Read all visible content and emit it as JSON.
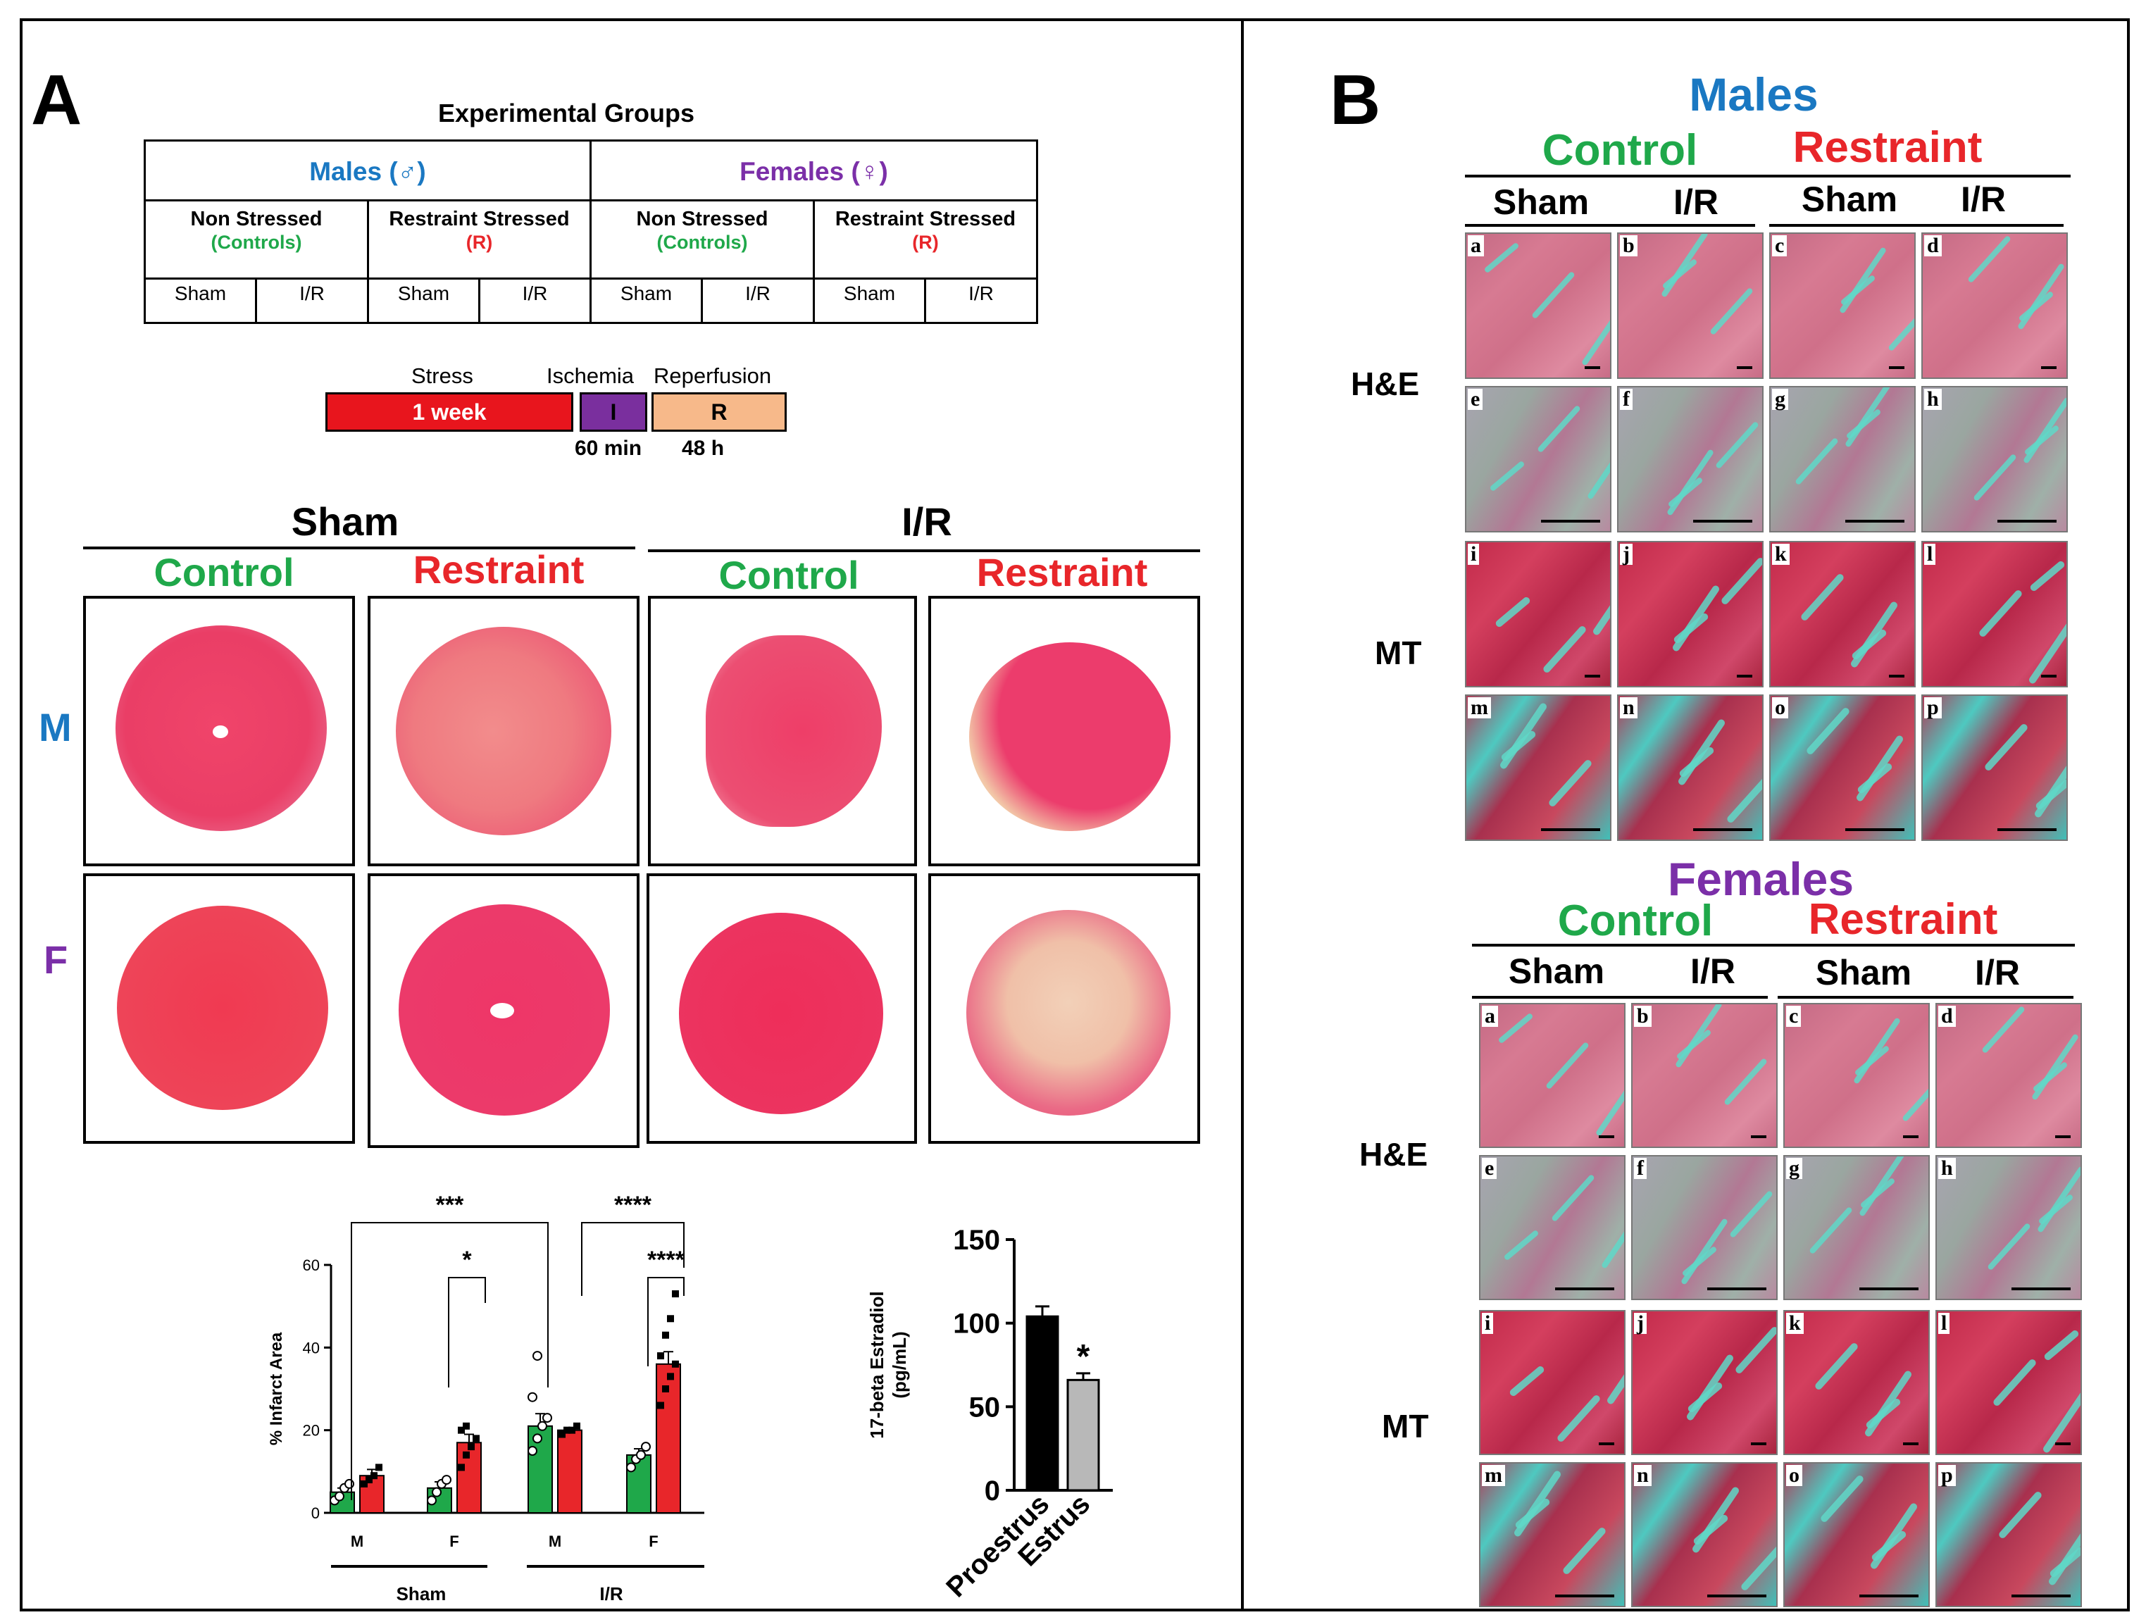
{
  "panelA": {
    "label": "A",
    "table": {
      "title": "Experimental Groups",
      "males": "Males (♂)",
      "females": "Females (♀)",
      "non_stressed": "Non Stressed",
      "controls": "(Controls)",
      "restraint_stressed": "Restraint Stressed",
      "r": "(R)",
      "sham": "Sham",
      "ir": "I/R"
    },
    "timeline": {
      "stress": "Stress",
      "ischemia": "Ischemia",
      "reperfusion": "Reperfusion",
      "week": "1 week",
      "i": "I",
      "r": "R",
      "min": "60 min",
      "h": "48 h"
    },
    "hearts": {
      "sham": "Sham",
      "ir": "I/R",
      "control": "Control",
      "restraint": "Restraint",
      "m": "M",
      "f": "F"
    }
  },
  "colors": {
    "male_blue": "#1a78c2",
    "female_purple": "#7b2fa8",
    "control_green": "#1fa84a",
    "restraint_red": "#e8262a",
    "stress_bar": "#e8151d",
    "ischemia_bar": "#7a2f9e",
    "reperfusion_bar": "#f7b98a"
  },
  "chart_data": [
    {
      "type": "bar",
      "ylabel": "% Infarct Area",
      "ylim": [
        0,
        60
      ],
      "yticks": [
        "0",
        "20",
        "40",
        "60"
      ],
      "categories": [
        "M",
        "F",
        "M",
        "F"
      ],
      "groups": [
        "Sham",
        "I/R"
      ],
      "series": [
        {
          "name": "Control",
          "values": [
            5,
            6,
            21,
            14
          ]
        },
        {
          "name": "Restraint",
          "values": [
            9,
            17,
            20,
            36
          ]
        }
      ],
      "errors": [
        [
          1,
          1.5,
          3,
          1.5
        ],
        [
          1.5,
          2,
          0.5,
          3
        ]
      ],
      "points": [
        [
          [
            3,
            4,
            6,
            7
          ],
          [
            3,
            5,
            7,
            8
          ],
          [
            15,
            18,
            21,
            23,
            28,
            38
          ],
          [
            11,
            13,
            14,
            16
          ]
        ],
        [
          [
            7,
            8,
            9,
            11
          ],
          [
            11,
            14,
            16,
            18,
            20,
            21
          ],
          [
            19,
            20,
            20,
            21
          ],
          [
            26,
            30,
            33,
            36,
            38,
            43,
            47,
            53
          ]
        ]
      ],
      "significance": [
        "***",
        "****",
        "*",
        "****"
      ]
    },
    {
      "type": "bar",
      "ylabel": "17-beta Estradiol (pg/mL)",
      "ylim": [
        0,
        150
      ],
      "yticks": [
        "0",
        "50",
        "100",
        "150"
      ],
      "categories": [
        "Proestrus",
        "Estrus"
      ],
      "values": [
        104,
        66
      ],
      "errors": [
        6,
        4
      ],
      "significance": "*"
    }
  ],
  "panelB": {
    "label": "B",
    "males": "Males",
    "females": "Females",
    "control": "Control",
    "restraint": "Restraint",
    "sham": "Sham",
    "ir": "I/R",
    "he": "H&E",
    "mt": "MT",
    "letters": [
      "a",
      "b",
      "c",
      "d",
      "e",
      "f",
      "g",
      "h",
      "i",
      "j",
      "k",
      "l",
      "m",
      "n",
      "o",
      "p"
    ]
  }
}
